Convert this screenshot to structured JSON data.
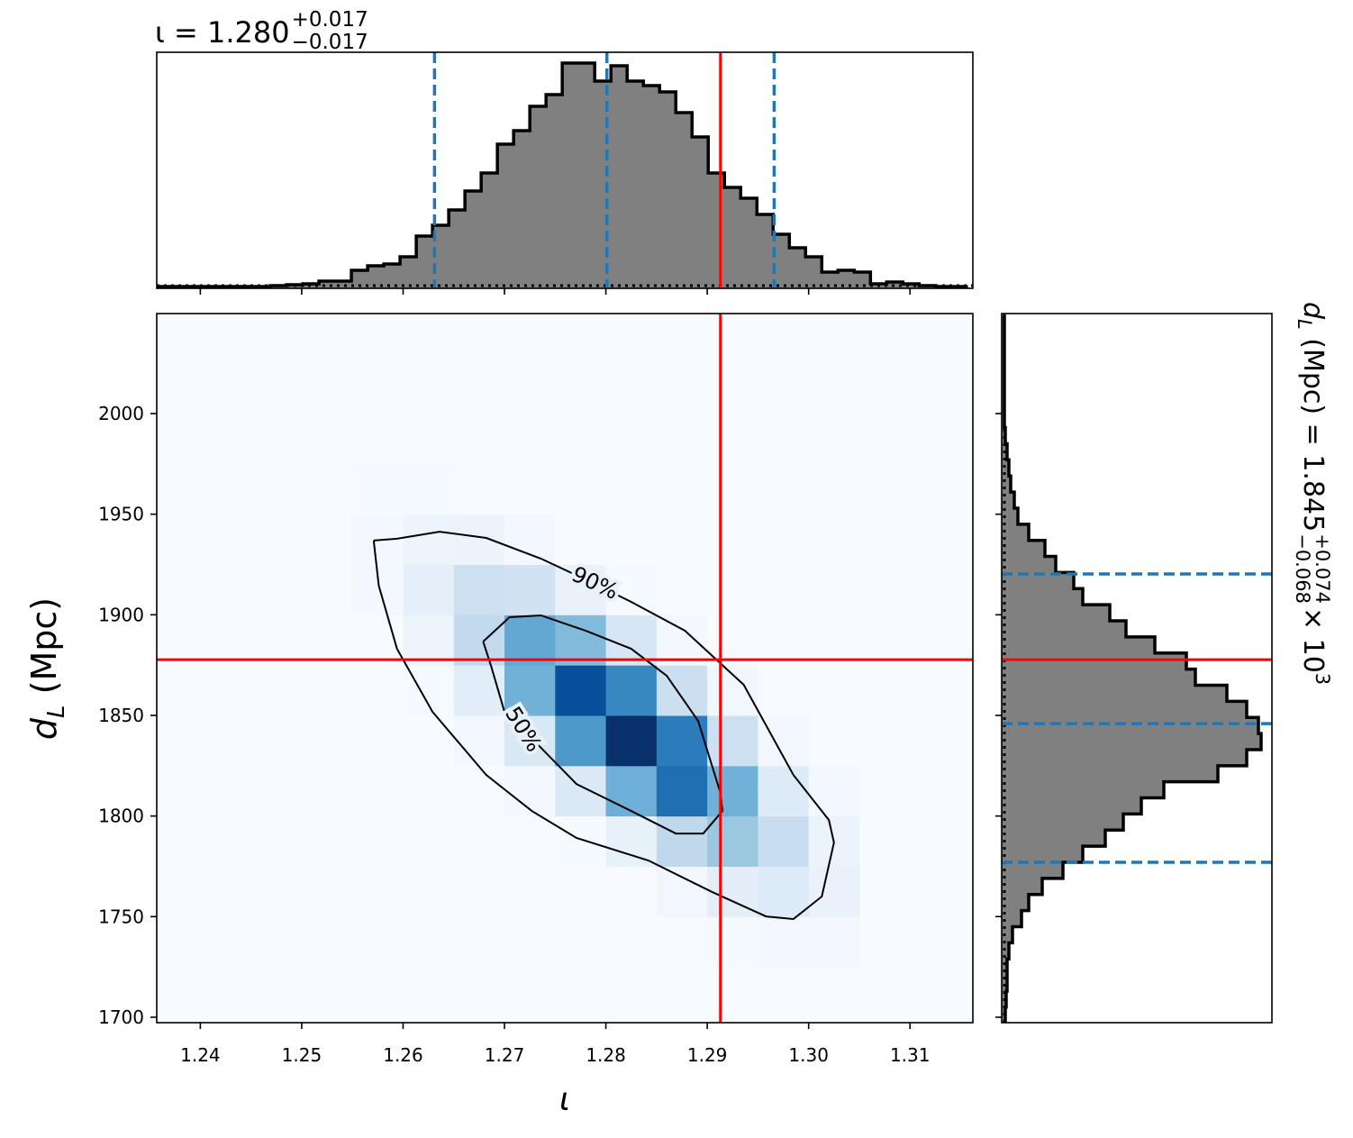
{
  "chart_data": {
    "type": "corner",
    "title": {
      "main": "ι = 1.280",
      "sup": "+0.017",
      "sub": "−0.017"
    },
    "side_title": {
      "main": "d",
      "main_sub": "L",
      "rest": " (Mpc) = 1.845",
      "sup": "+0.074",
      "sub": "−0.068",
      "tail": " × 10",
      "tail_sup": "3"
    },
    "x_label": "ι",
    "y_label": {
      "main": "d",
      "sub": "L",
      "rest": " (Mpc)"
    },
    "xlim": [
      1.2357,
      1.3162
    ],
    "ylim": [
      1697.3,
      2049.7
    ],
    "xticks": [
      1.24,
      1.25,
      1.26,
      1.27,
      1.28,
      1.29,
      {
        "value": 1.3,
        "label": "1.30"
      },
      1.31
    ],
    "yticks": [
      1700,
      1750,
      1800,
      1850,
      1900,
      1950,
      2000
    ],
    "density": {
      "colormap": [
        "#f7fbff",
        "#deebf7",
        "#c6dbef",
        "#9ecae1",
        "#6baed6",
        "#4292c6",
        "#2171b5",
        "#08519c",
        "#08306b"
      ],
      "x": [
        1.2575,
        1.2625,
        1.2675,
        1.2725,
        1.2775,
        1.2825,
        1.2875,
        1.2925,
        1.2975,
        1.3025
      ],
      "y": [
        1737.5,
        1762.5,
        1787.5,
        1812.5,
        1837.5,
        1862.5,
        1887.5,
        1912.5,
        1937.5,
        1962.5
      ],
      "z": [
        [
          0,
          0,
          0,
          0,
          0,
          0,
          0,
          1,
          2,
          3
        ],
        [
          0,
          0,
          0,
          0,
          0,
          0,
          3,
          10,
          13,
          7
        ],
        [
          0,
          0,
          0,
          0,
          1,
          8,
          27,
          38,
          23,
          6
        ],
        [
          0,
          0,
          0,
          2,
          14,
          49,
          75,
          48,
          13,
          2
        ],
        [
          0,
          0,
          2,
          15,
          59,
          99,
          70,
          21,
          3,
          0
        ],
        [
          0,
          1,
          11,
          48,
          87,
          66,
          22,
          3,
          0,
          0
        ],
        [
          0,
          5,
          26,
          52,
          44,
          16,
          2,
          0,
          0,
          0
        ],
        [
          2,
          9,
          21,
          19,
          7,
          1,
          0,
          0,
          0,
          0
        ],
        [
          2,
          5,
          6,
          2,
          0,
          0,
          0,
          0,
          0,
          0
        ],
        [
          1,
          1,
          0,
          0,
          0,
          0,
          0,
          0,
          0,
          0
        ]
      ]
    },
    "contours": [
      {
        "label": "90%",
        "x": [
          1.2571,
          1.2594,
          1.2636,
          1.2682,
          1.2736,
          1.2789,
          1.2825,
          1.2878,
          1.2936,
          1.2985,
          1.302,
          1.3025,
          1.3013,
          1.2985,
          1.2958,
          1.2905,
          1.2842,
          1.2771,
          1.2727,
          1.2682,
          1.2629,
          1.2594,
          1.2576,
          1.2571
        ],
        "y": [
          1936.9,
          1937.8,
          1941.3,
          1938.2,
          1927.9,
          1915.4,
          1906.4,
          1892.1,
          1865.2,
          1820.4,
          1798.0,
          1786.8,
          1760.0,
          1748.8,
          1750.1,
          1762.2,
          1777.9,
          1789.1,
          1802.5,
          1820.4,
          1851.8,
          1883.1,
          1914.5,
          1936.9
        ]
      },
      {
        "label": "50%",
        "x": [
          1.2679,
          1.2705,
          1.2736,
          1.278,
          1.2825,
          1.286,
          1.2891,
          1.2913,
          1.2915,
          1.2896,
          1.2869,
          1.2825,
          1.2771,
          1.2736,
          1.27,
          1.2687,
          1.2679
        ],
        "y": [
          1886.7,
          1898.8,
          1899.7,
          1892.1,
          1883.1,
          1869.7,
          1847.3,
          1811.5,
          1802.5,
          1791.3,
          1791.3,
          1802.5,
          1815.9,
          1833.9,
          1851.8,
          1874.2,
          1886.7
        ]
      }
    ],
    "truth": {
      "x": 1.2913,
      "y": 1877.7,
      "color": "#ff0000"
    },
    "quantiles": {
      "x": [
        1.2631,
        1.2801,
        1.2966
      ],
      "y": [
        1777.0,
        1845.9,
        1920.3
      ],
      "color": "#1f77b4"
    },
    "x_hist": {
      "color": "#808080",
      "lim": [
        0,
        262
      ],
      "bins": [
        1.2357,
        1.2373,
        1.2389,
        1.2405,
        1.2421,
        1.2437,
        1.2453,
        1.2469,
        1.2485,
        1.2501,
        1.2517,
        1.2533,
        1.2549,
        1.2565,
        1.2581,
        1.2597,
        1.2613,
        1.2629,
        1.2645,
        1.2661,
        1.2677,
        1.2693,
        1.2709,
        1.2725,
        1.2741,
        1.2757,
        1.2773,
        1.2789,
        1.2805,
        1.2821,
        1.2837,
        1.2853,
        1.2869,
        1.2885,
        1.2901,
        1.2917,
        1.2933,
        1.2949,
        1.2965,
        1.2981,
        1.2997,
        1.3013,
        1.3029,
        1.3045,
        1.3061,
        1.3077,
        1.3093,
        1.3109,
        1.3125,
        1.3141,
        1.3157
      ],
      "counts": [
        2,
        2,
        2,
        2,
        2,
        2,
        2,
        3,
        4,
        5,
        8,
        8,
        20,
        25,
        27,
        35,
        58,
        70,
        87,
        108,
        128,
        160,
        175,
        202,
        215,
        250,
        250,
        230,
        247,
        230,
        225,
        218,
        195,
        168,
        128,
        112,
        100,
        82,
        60,
        45,
        35,
        18,
        20,
        18,
        5,
        7,
        5,
        3,
        2,
        2
      ]
    },
    "y_hist": {
      "color": "#808080",
      "lim": [
        0,
        300
      ],
      "bins": [
        1697,
        1705,
        1713,
        1721,
        1729,
        1737,
        1745,
        1753,
        1761,
        1769,
        1777,
        1785,
        1793,
        1801,
        1809,
        1817,
        1825,
        1833,
        1841,
        1849,
        1857,
        1865,
        1873,
        1881,
        1889,
        1897,
        1905,
        1913,
        1921,
        1929,
        1937,
        1945,
        1953,
        1961,
        1969,
        1977,
        1985,
        1993,
        2001,
        2009,
        2017,
        2025,
        2033,
        2041,
        2049
      ],
      "counts": [
        4,
        5,
        6,
        6,
        8,
        12,
        22,
        30,
        45,
        68,
        90,
        115,
        135,
        155,
        180,
        240,
        272,
        288,
        285,
        272,
        250,
        215,
        205,
        170,
        138,
        120,
        90,
        80,
        60,
        48,
        30,
        18,
        14,
        10,
        8,
        6,
        4,
        3,
        3,
        3,
        3,
        3,
        3,
        3
      ]
    }
  }
}
